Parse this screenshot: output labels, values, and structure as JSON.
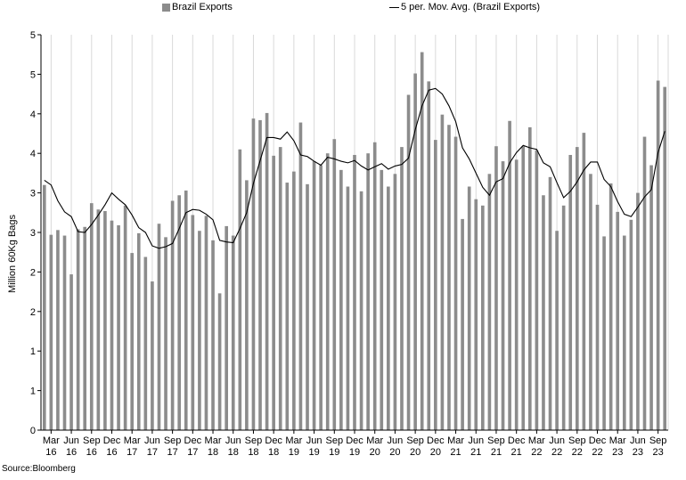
{
  "chart_data": {
    "type": "bar",
    "ylabel": "Million 60Kg Bags",
    "ylim": [
      0,
      5
    ],
    "y_tick_labels": [
      "0",
      "1",
      "1",
      "2",
      "2",
      "3",
      "3",
      "4",
      "4",
      "5",
      "5"
    ],
    "grid": "vertical",
    "legend_position": "top",
    "categories": [
      "Feb 16",
      "Mar 16",
      "Apr 16",
      "May 16",
      "Jun 16",
      "Jul 16",
      "Aug 16",
      "Sep 16",
      "Oct 16",
      "Nov 16",
      "Dec 16",
      "Jan 17",
      "Feb 17",
      "Mar 17",
      "Apr 17",
      "May 17",
      "Jun 17",
      "Jul 17",
      "Aug 17",
      "Sep 17",
      "Oct 17",
      "Nov 17",
      "Dec 17",
      "Jan 18",
      "Feb 18",
      "Mar 18",
      "Apr 18",
      "May 18",
      "Jun 18",
      "Jul 18",
      "Aug 18",
      "Sep 18",
      "Oct 18",
      "Nov 18",
      "Dec 18",
      "Jan 19",
      "Feb 19",
      "Mar 19",
      "Apr 19",
      "May 19",
      "Jun 19",
      "Jul 19",
      "Aug 19",
      "Sep 19",
      "Oct 19",
      "Nov 19",
      "Dec 19",
      "Jan 20",
      "Feb 20",
      "Mar 20",
      "Apr 20",
      "May 20",
      "Jun 20",
      "Jul 20",
      "Aug 20",
      "Sep 20",
      "Oct 20",
      "Nov 20",
      "Dec 20",
      "Jan 21",
      "Feb 21",
      "Mar 21",
      "Apr 21",
      "May 21",
      "Jun 21",
      "Jul 21",
      "Aug 21",
      "Sep 21",
      "Oct 21",
      "Nov 21",
      "Dec 21",
      "Jan 22",
      "Feb 22",
      "Mar 22",
      "Apr 22",
      "May 22",
      "Jun 22",
      "Jul 22",
      "Aug 22",
      "Sep 22",
      "Oct 22",
      "Nov 22",
      "Dec 22",
      "Jan 23",
      "Feb 23",
      "Mar 23",
      "Apr 23",
      "May 23",
      "Jun 23",
      "Jul 23",
      "Aug 23",
      "Sep 23",
      "Oct 23"
    ],
    "x_tick_labels": [
      {
        "month": "Mar",
        "year": "16",
        "category": "Mar 16"
      },
      {
        "month": "Jun",
        "year": "16",
        "category": "Jun 16"
      },
      {
        "month": "Sep",
        "year": "16",
        "category": "Sep 16"
      },
      {
        "month": "Dec",
        "year": "16",
        "category": "Dec 16"
      },
      {
        "month": "Mar",
        "year": "17",
        "category": "Mar 17"
      },
      {
        "month": "Jun",
        "year": "17",
        "category": "Jun 17"
      },
      {
        "month": "Sep",
        "year": "17",
        "category": "Sep 17"
      },
      {
        "month": "Dec",
        "year": "17",
        "category": "Dec 17"
      },
      {
        "month": "Mar",
        "year": "18",
        "category": "Mar 18"
      },
      {
        "month": "Jun",
        "year": "18",
        "category": "Jun 18"
      },
      {
        "month": "Sep",
        "year": "18",
        "category": "Sep 18"
      },
      {
        "month": "Dec",
        "year": "18",
        "category": "Dec 18"
      },
      {
        "month": "Mar",
        "year": "19",
        "category": "Mar 19"
      },
      {
        "month": "Jun",
        "year": "19",
        "category": "Jun 19"
      },
      {
        "month": "Sep",
        "year": "19",
        "category": "Sep 19"
      },
      {
        "month": "Dec",
        "year": "19",
        "category": "Dec 19"
      },
      {
        "month": "Mar",
        "year": "20",
        "category": "Mar 20"
      },
      {
        "month": "Jun",
        "year": "20",
        "category": "Jun 20"
      },
      {
        "month": "Sep",
        "year": "20",
        "category": "Sep 20"
      },
      {
        "month": "Dec",
        "year": "20",
        "category": "Dec 20"
      },
      {
        "month": "Mar",
        "year": "21",
        "category": "Mar 21"
      },
      {
        "month": "Jun",
        "year": "21",
        "category": "Jun 21"
      },
      {
        "month": "Sep",
        "year": "21",
        "category": "Sep 21"
      },
      {
        "month": "Dec",
        "year": "21",
        "category": "Dec 21"
      },
      {
        "month": "Mar",
        "year": "22",
        "category": "Mar 22"
      },
      {
        "month": "Jun",
        "year": "22",
        "category": "Jun 22"
      },
      {
        "month": "Sep",
        "year": "22",
        "category": "Sep 22"
      },
      {
        "month": "Dec",
        "year": "22",
        "category": "Dec 22"
      },
      {
        "month": "Mar",
        "year": "23",
        "category": "Mar 23"
      },
      {
        "month": "Jun",
        "year": "23",
        "category": "Jun 23"
      },
      {
        "month": "Sep",
        "year": "23",
        "category": "Sep 23"
      }
    ],
    "series": [
      {
        "name": "Brazil Exports",
        "type": "bar",
        "color": "#8c8c8c",
        "values": [
          3.1,
          2.47,
          2.53,
          2.46,
          1.97,
          2.54,
          2.57,
          2.87,
          2.79,
          2.77,
          2.65,
          2.59,
          2.84,
          2.24,
          2.49,
          2.19,
          1.88,
          2.61,
          2.44,
          2.9,
          2.97,
          3.03,
          2.72,
          2.52,
          2.71,
          2.4,
          1.73,
          2.58,
          2.46,
          3.55,
          3.16,
          3.94,
          3.92,
          4.01,
          3.47,
          3.58,
          3.13,
          3.27,
          3.89,
          3.11,
          3.4,
          3.35,
          3.5,
          3.68,
          3.29,
          3.08,
          3.48,
          3.02,
          3.5,
          3.64,
          3.29,
          3.08,
          3.24,
          3.58,
          4.24,
          4.51,
          4.78,
          4.41,
          3.67,
          3.99,
          3.86,
          3.71,
          2.67,
          3.08,
          2.92,
          2.84,
          3.24,
          3.59,
          3.4,
          3.91,
          3.42,
          3.59,
          3.83,
          3.54,
          2.97,
          3.2,
          2.52,
          2.84,
          3.48,
          3.58,
          3.76,
          3.24,
          2.85,
          2.45,
          3.12,
          2.76,
          2.46,
          2.66,
          3.0,
          3.71,
          3.35,
          4.42,
          4.34
        ]
      },
      {
        "name": "5 per. Mov. Avg. (Brazil Exports)",
        "type": "line",
        "color": "#000000",
        "values": [
          3.16,
          3.1,
          2.9,
          2.76,
          2.7,
          2.51,
          2.5,
          2.6,
          2.72,
          2.85,
          3.0,
          2.92,
          2.85,
          2.72,
          2.56,
          2.5,
          2.33,
          2.3,
          2.32,
          2.36,
          2.55,
          2.75,
          2.79,
          2.78,
          2.73,
          2.66,
          2.4,
          2.38,
          2.37,
          2.55,
          2.75,
          3.12,
          3.41,
          3.7,
          3.7,
          3.68,
          3.77,
          3.66,
          3.48,
          3.46,
          3.4,
          3.35,
          3.45,
          3.43,
          3.4,
          3.38,
          3.41,
          3.34,
          3.29,
          3.33,
          3.37,
          3.3,
          3.34,
          3.36,
          3.44,
          3.8,
          4.1,
          4.3,
          4.32,
          4.25,
          4.1,
          3.9,
          3.57,
          3.43,
          3.25,
          3.07,
          2.97,
          3.14,
          3.18,
          3.38,
          3.51,
          3.6,
          3.57,
          3.55,
          3.38,
          3.33,
          3.13,
          2.94,
          3.02,
          3.14,
          3.29,
          3.39,
          3.39,
          3.17,
          3.08,
          2.89,
          2.73,
          2.7,
          2.82,
          2.95,
          3.04,
          3.51,
          3.78
        ]
      }
    ]
  },
  "legend": {
    "bar_label": "Brazil Exports",
    "line_label": "5 per. Mov. Avg. (Brazil Exports)"
  },
  "source": "Source:Bloomberg"
}
